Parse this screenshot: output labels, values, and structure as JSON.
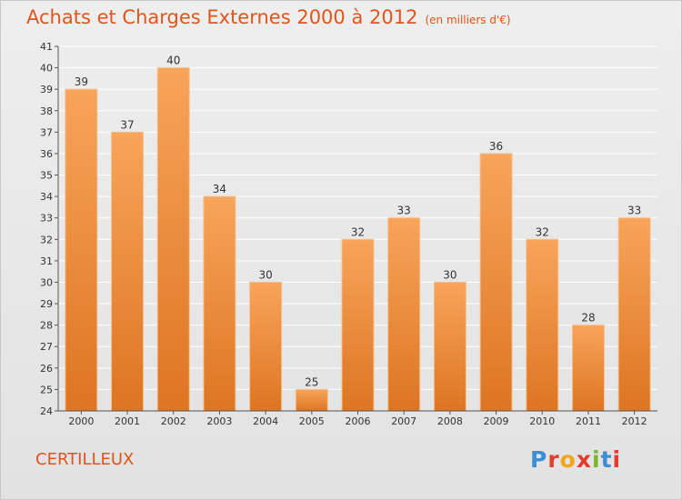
{
  "title": "Achats et Charges Externes 2000 à 2012",
  "unit": "(en milliers d'€)",
  "town": "CERTILLEUX",
  "brand": "Proxiti",
  "colors": {
    "accent": "#e1541a",
    "bar_light": "#f8a45a",
    "bar_dark": "#dd7522",
    "grid": "#ffffff",
    "logo": [
      "#3b8fd4",
      "#e23c2c",
      "#f2a516",
      "#e23c2c",
      "#78b828",
      "#3b8fd4",
      "#e23c2c"
    ]
  },
  "chart_data": {
    "type": "bar",
    "categories": [
      "2000",
      "2001",
      "2002",
      "2003",
      "2004",
      "2005",
      "2006",
      "2007",
      "2008",
      "2009",
      "2010",
      "2011",
      "2012"
    ],
    "values": [
      39,
      37,
      40,
      34,
      30,
      25,
      32,
      33,
      30,
      36,
      32,
      28,
      33
    ],
    "title": "Achats et Charges Externes 2000 à 2012",
    "subtitle": "(en milliers d'€)",
    "xlabel": "",
    "ylabel": "",
    "ylim": [
      24,
      41
    ],
    "yticks": [
      24,
      25,
      26,
      27,
      28,
      29,
      30,
      31,
      32,
      33,
      34,
      35,
      36,
      37,
      38,
      39,
      40,
      41
    ],
    "grid": true,
    "legend": "none"
  }
}
